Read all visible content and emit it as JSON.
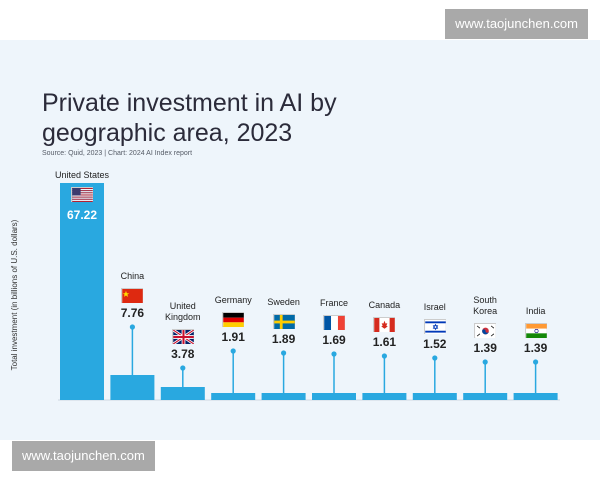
{
  "watermark_top": "www.taojunchen.com",
  "watermark_bottom": "www.taojunchen.com",
  "title_line1": "Private investment in AI by",
  "title_line2": "geographic area, 2023",
  "source": "Source: Quid, 2023 | Chart: 2024 AI Index report",
  "colors": {
    "bar": "#29a8e0",
    "background": "#eef5fb",
    "title": "#2b2b3a"
  },
  "chart_data": {
    "type": "bar",
    "title": "Private investment in AI by geographic area, 2023",
    "ylabel": "Total investment (in billions of U.S. dollars)",
    "xlabel": "",
    "ylim": [
      0,
      67.22
    ],
    "categories": [
      "United States",
      "China",
      "United Kingdom",
      "Germany",
      "Sweden",
      "France",
      "Canada",
      "Israel",
      "South Korea",
      "India"
    ],
    "label_lines": [
      [
        "United States"
      ],
      [
        "China"
      ],
      [
        "United",
        "Kingdom"
      ],
      [
        "Germany"
      ],
      [
        "Sweden"
      ],
      [
        "France"
      ],
      [
        "Canada"
      ],
      [
        "Israel"
      ],
      [
        "South",
        "Korea"
      ],
      [
        "India"
      ]
    ],
    "value_labels": [
      "67.22",
      "7.76",
      "3.78",
      "1.91",
      "1.89",
      "1.69",
      "1.61",
      "1.52",
      "1.39",
      "1.39"
    ],
    "values": [
      67.22,
      7.76,
      3.78,
      1.91,
      1.89,
      1.69,
      1.61,
      1.52,
      1.39,
      1.39
    ],
    "flags": [
      "us-flag",
      "china-flag",
      "uk-flag",
      "germany-flag",
      "sweden-flag",
      "france-flag",
      "canada-flag",
      "israel-flag",
      "south-korea-flag",
      "india-flag"
    ]
  }
}
